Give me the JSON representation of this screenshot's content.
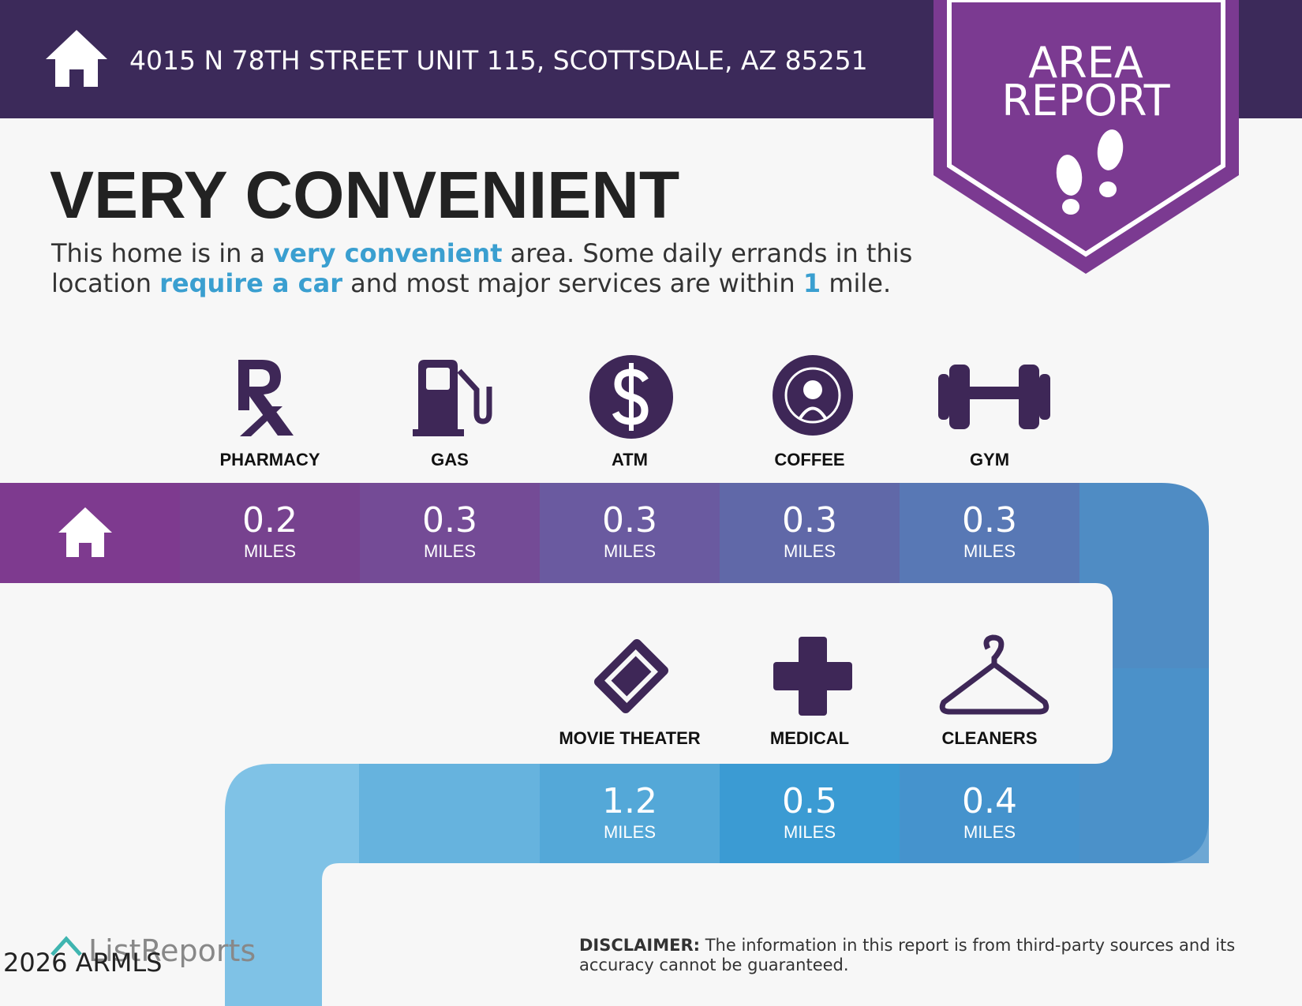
{
  "header": {
    "address": "4015 N 78TH STREET UNIT 115, SCOTTSDALE, AZ 85251"
  },
  "badge": {
    "lines": [
      "AREA",
      "REPORT"
    ]
  },
  "headline": "VERY CONVENIENT",
  "description": {
    "lines": [
      [
        {
          "text": "This home is in a ",
          "highlight": false
        },
        {
          "text": "very convenient",
          "highlight": true
        },
        {
          "text": " area. Some daily errands in this",
          "highlight": false
        }
      ],
      [
        {
          "text": "location ",
          "highlight": false
        },
        {
          "text": "require a car",
          "highlight": true
        },
        {
          "text": " and most major services are within ",
          "highlight": false
        },
        {
          "text": "1",
          "highlight": true
        },
        {
          "text": " mile.",
          "highlight": false
        }
      ]
    ]
  },
  "services": {
    "unit": "MILES",
    "row1": [
      {
        "label": "PHARMACY",
        "distance": 0.2
      },
      {
        "label": "GAS",
        "distance": 0.3
      },
      {
        "label": "ATM",
        "distance": 0.3
      },
      {
        "label": "COFFEE",
        "distance": 0.3
      },
      {
        "label": "GYM",
        "distance": 0.3
      }
    ],
    "row2": [
      {
        "label": "MOVIE THEATER",
        "distance": 1.2
      },
      {
        "label": "MEDICAL",
        "distance": 0.5
      },
      {
        "label": "CLEANERS",
        "distance": 0.4
      }
    ]
  },
  "footer": {
    "logo": "ListReports",
    "watermark": "2026 ARMLS",
    "disclaimer_label": "DISCLAIMER:",
    "disclaimer_text": " The information in this report is from third-party sources and its",
    "disclaimer_text2": "accuracy cannot be guaranteed."
  }
}
